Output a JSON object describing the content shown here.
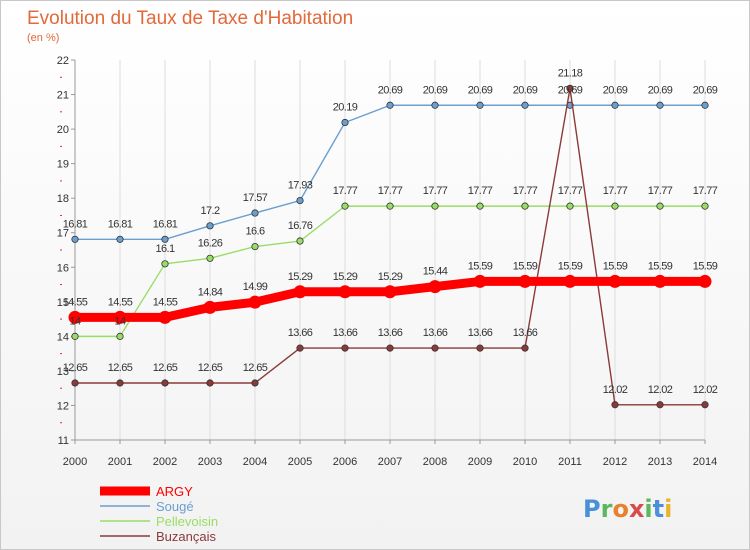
{
  "chart_data": {
    "type": "line",
    "title": "Evolution du Taux de Taxe d'Habitation",
    "subtitle": "(en %)",
    "x": [
      "2000",
      "2001",
      "2002",
      "2003",
      "2004",
      "2005",
      "2006",
      "2007",
      "2008",
      "2009",
      "2010",
      "2011",
      "2012",
      "2013",
      "2014"
    ],
    "ylim": [
      11,
      22
    ],
    "yticks": [
      "11",
      "12",
      "13",
      "14",
      "15",
      "16",
      "17",
      "18",
      "19",
      "20",
      "21",
      "22"
    ],
    "grid": "vertical",
    "legend_position": "bottom-left",
    "series": [
      {
        "name": "ARGY",
        "color": "#ff0000",
        "values": [
          14.55,
          14.55,
          14.55,
          14.84,
          14.99,
          15.29,
          15.29,
          15.29,
          15.44,
          15.59,
          15.59,
          15.59,
          15.59,
          15.59,
          15.59
        ],
        "labels": [
          "14.55",
          "14.55",
          "14.55",
          "14.84",
          "14.99",
          "15.29",
          "15.29",
          "15.29",
          "15.44",
          "15.59",
          "15.59",
          "15.59",
          "15.59",
          "15.59",
          "15.59"
        ]
      },
      {
        "name": "Sougé",
        "color": "#6a9fd0",
        "values": [
          16.81,
          16.81,
          16.81,
          17.2,
          17.57,
          17.93,
          20.19,
          20.69,
          20.69,
          20.69,
          20.69,
          20.69,
          20.69,
          20.69,
          20.69
        ],
        "labels": [
          "16.81",
          "16.81",
          "16.81",
          "17.2",
          "17.57",
          "17.93",
          "20.19",
          "20.69",
          "20.69",
          "20.69",
          "20.69",
          "20.69",
          "20.69",
          "20.69",
          "20.69"
        ]
      },
      {
        "name": "Pellevoisin",
        "color": "#99dd66",
        "values": [
          14,
          14,
          16.1,
          16.26,
          16.6,
          16.76,
          17.77,
          17.77,
          17.77,
          17.77,
          17.77,
          17.77,
          17.77,
          17.77,
          17.77
        ],
        "labels": [
          "14",
          "14",
          "16.1",
          "16.26",
          "16.6",
          "16.76",
          "17.77",
          "17.77",
          "17.77",
          "17.77",
          "17.77",
          "17.77",
          "17.77",
          "17.77",
          "17.77"
        ]
      },
      {
        "name": "Buzançais",
        "color": "#8b3a3a",
        "values": [
          12.65,
          12.65,
          12.65,
          12.65,
          12.65,
          13.66,
          13.66,
          13.66,
          13.66,
          13.66,
          13.66,
          21.18,
          12.02,
          12.02,
          12.02
        ],
        "labels": [
          "12.65",
          "12.65",
          "12.65",
          "12.65",
          "12.65",
          "13.66",
          "13.66",
          "13.66",
          "13.66",
          "13.66",
          "13.66",
          "21.18",
          "12.02",
          "12.02",
          "12.02"
        ]
      }
    ]
  },
  "logo": {
    "text": "Proxiti"
  }
}
